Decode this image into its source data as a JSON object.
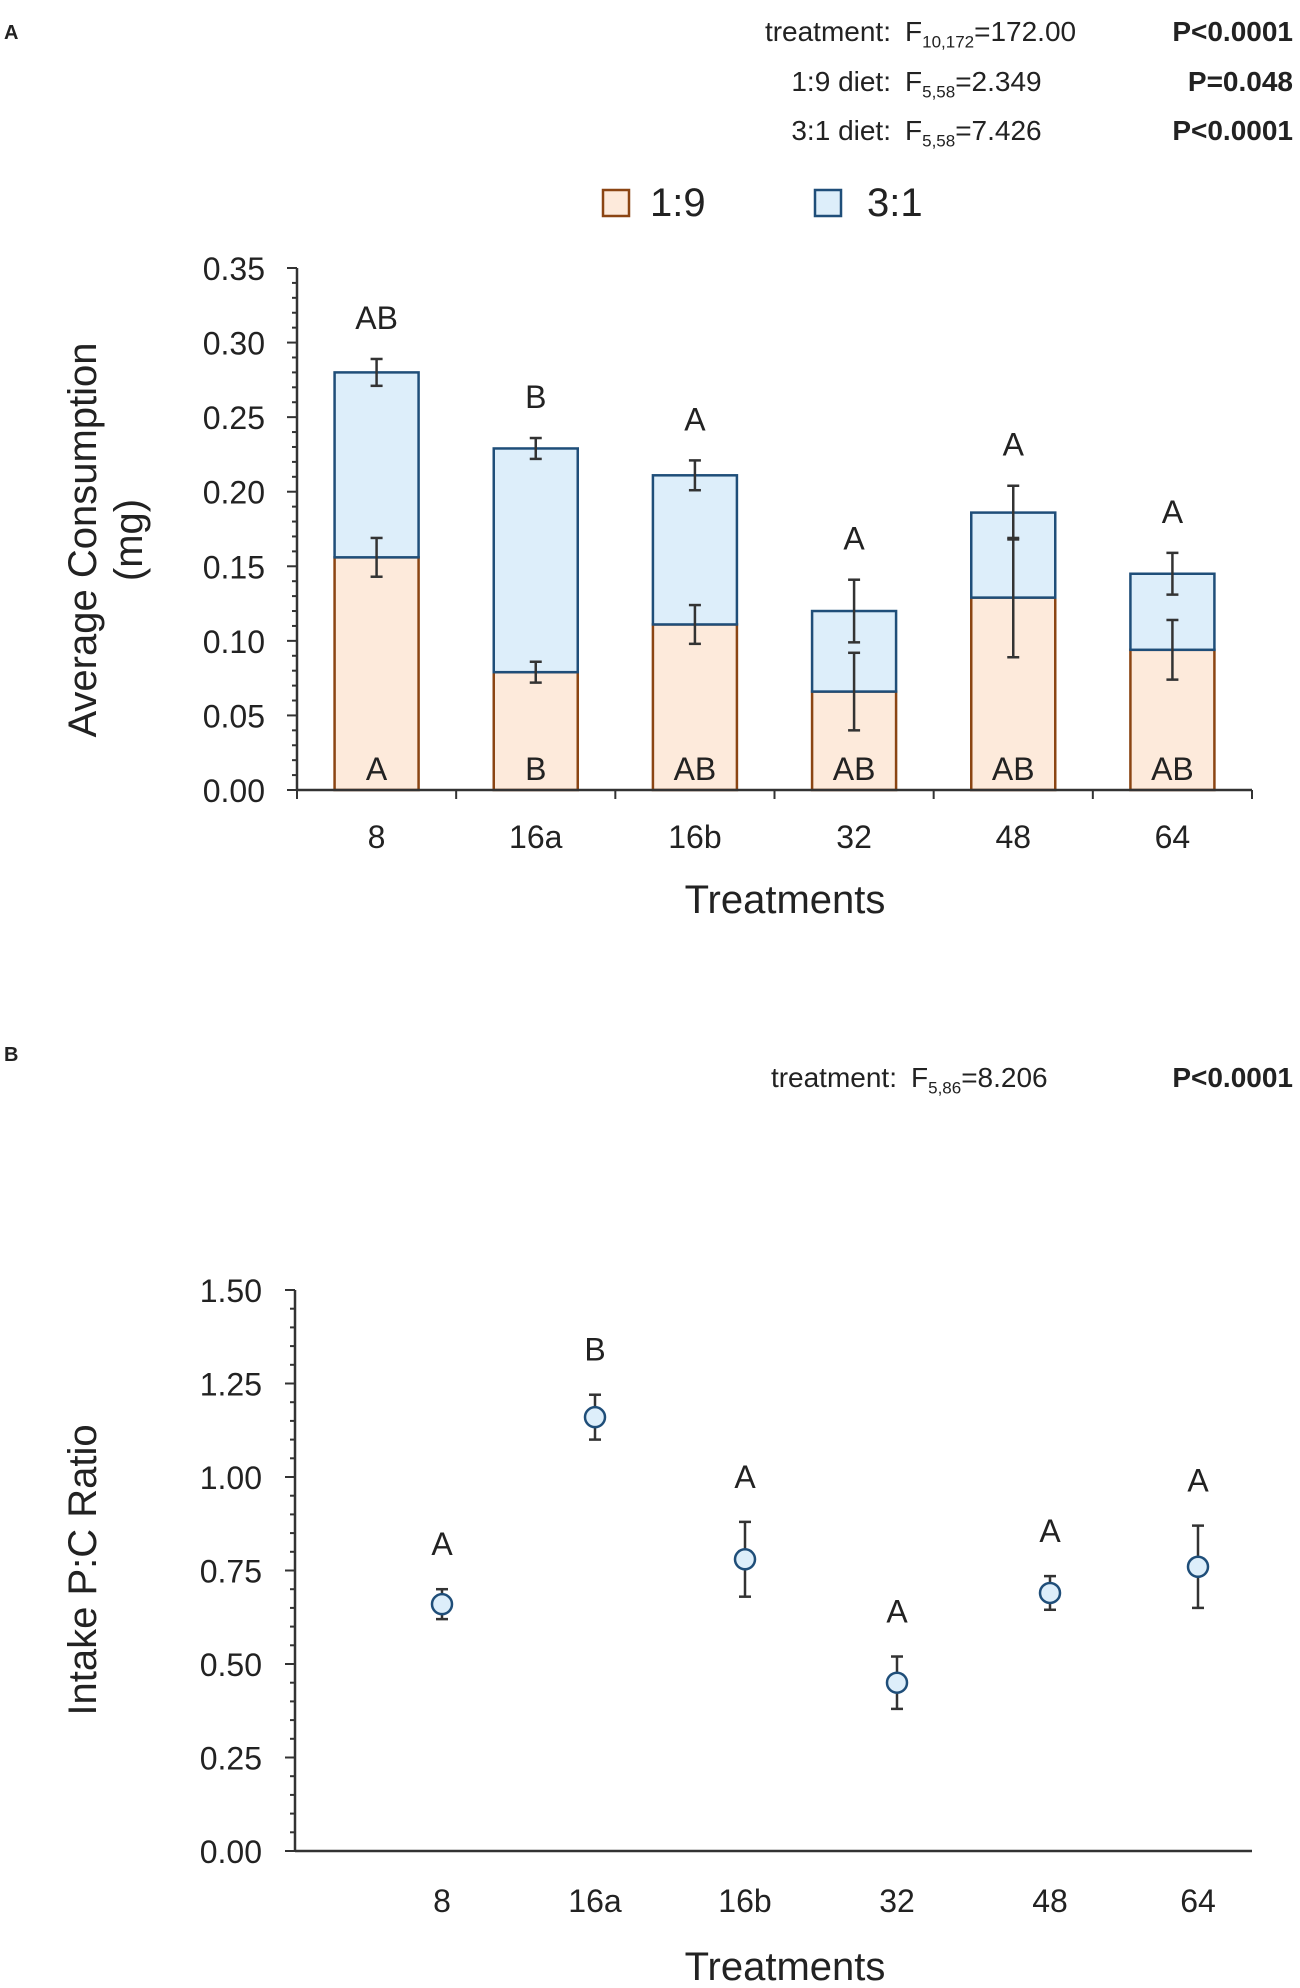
{
  "panelA": {
    "label": "A",
    "stats": [
      {
        "name": "treatment:",
        "f": "F",
        "sub": "10,172",
        "fval": "=172.00",
        "p": "P<0.0001"
      },
      {
        "name": "1:9 diet:",
        "f": "F",
        "sub": "5,58",
        "fval": "=2.349",
        "p": "P=0.048"
      },
      {
        "name": "3:1 diet:",
        "f": "F",
        "sub": "5,58",
        "fval": "=7.426",
        "p": "P<0.0001"
      }
    ]
  },
  "panelB": {
    "label": "B",
    "stats": [
      {
        "name": "treatment:",
        "f": "F",
        "sub": "5,86",
        "fval": "=8.206",
        "p": "P<0.0001"
      }
    ]
  },
  "colors": {
    "fill_19": "#fdeadb",
    "stroke_19": "#8b4513",
    "fill_31": "#ddeefa",
    "stroke_31": "#1f4e79",
    "error": "#333333",
    "axis": "#333333"
  },
  "chart_data": [
    {
      "type": "bar",
      "stacked": true,
      "categories": [
        "8",
        "16a",
        "16b",
        "32",
        "48",
        "64"
      ],
      "series": [
        {
          "name": "1:9",
          "values": [
            0.156,
            0.079,
            0.111,
            0.066,
            0.129,
            0.094
          ],
          "errors": [
            0.013,
            0.007,
            0.013,
            0.026,
            0.04,
            0.02
          ]
        },
        {
          "name": "3:1",
          "values": [
            0.124,
            0.15,
            0.1,
            0.054,
            0.057,
            0.051
          ],
          "errors": [
            0.009,
            0.007,
            0.01,
            0.021,
            0.018,
            0.014
          ]
        }
      ],
      "legend": [
        "1:9",
        "3:1"
      ],
      "top_letters": [
        "AB",
        "B",
        "A",
        "A",
        "A",
        "A"
      ],
      "bottom_letters": [
        "A",
        "B",
        "AB",
        "AB",
        "AB",
        "AB"
      ],
      "xlabel": "Treatments",
      "ylabel_lines": [
        "Average Consumption",
        "(mg)"
      ],
      "ylim": [
        0,
        0.35
      ],
      "yticks": [
        "0.00",
        "0.05",
        "0.10",
        "0.15",
        "0.20",
        "0.25",
        "0.30",
        "0.35"
      ]
    },
    {
      "type": "scatter",
      "categories": [
        "8",
        "16a",
        "16b",
        "32",
        "48",
        "64"
      ],
      "values": [
        0.66,
        1.16,
        0.78,
        0.45,
        0.69,
        0.76
      ],
      "errors": [
        0.04,
        0.06,
        0.1,
        0.07,
        0.045,
        0.11
      ],
      "letters": [
        "A",
        "B",
        "A",
        "A",
        "A",
        "A"
      ],
      "xlabel": "Treatments",
      "ylabel": "Intake P:C Ratio",
      "ylim": [
        0,
        1.5
      ],
      "yticks": [
        "0.00",
        "0.25",
        "0.50",
        "0.75",
        "1.00",
        "1.25",
        "1.50"
      ]
    }
  ]
}
